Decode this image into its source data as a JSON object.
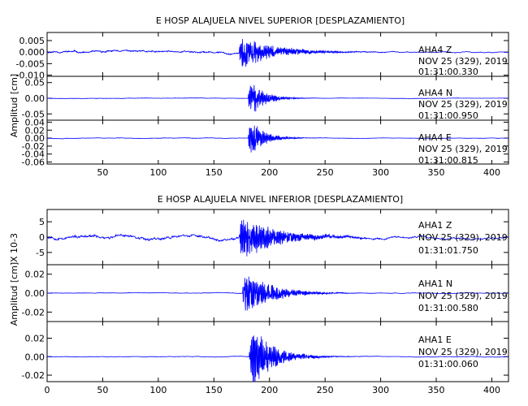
{
  "chart_data": [
    {
      "type": "line",
      "title": "E HOSP ALAJUELA NIVEL SUPERIOR [DESPLAZAMIENTO]",
      "ylabel": "Amplitud [cm]",
      "xlim": [
        0,
        415
      ],
      "x_ticks": [
        "50",
        "100",
        "150",
        "200",
        "250",
        "300",
        "350",
        "400"
      ],
      "x_tick_values": [
        50,
        100,
        150,
        200,
        250,
        300,
        350,
        400
      ],
      "line_color": "#0000ff",
      "panels": [
        {
          "series": "AHA4 Z",
          "station": "AHA4",
          "component": "Z",
          "date": "NOV 25 (329), 2019",
          "time": "01:31:00.330",
          "ylim": [
            -0.0105,
            0.0085
          ],
          "y_ticks": [
            "0.005",
            "0.000",
            "-0.005",
            "-0.010"
          ],
          "y_tick_values": [
            0.005,
            0.0,
            -0.005,
            -0.01
          ],
          "event_start": 173,
          "peak_amplitude": 0.0075,
          "pre_noise": 0.0006,
          "post_noise": 0.0004,
          "offset_pre": 0.0003,
          "decay_seconds": 28,
          "seed": 11
        },
        {
          "series": "AHA4 N",
          "station": "AHA4",
          "component": "N",
          "date": "NOV 25 (329), 2019",
          "time": "01:31:00.950",
          "ylim": [
            -0.07,
            0.07
          ],
          "y_ticks": [
            "0.05",
            "0.00",
            "-0.05"
          ],
          "y_tick_values": [
            0.05,
            0.0,
            -0.05
          ],
          "event_start": 181,
          "peak_amplitude": 0.06,
          "pre_noise": 0.0008,
          "post_noise": 0.0008,
          "offset_pre": 0.0,
          "decay_seconds": 12,
          "seed": 23
        },
        {
          "series": "AHA4 E",
          "station": "AHA4",
          "component": "E",
          "date": "NOV 25 (329), 2019",
          "time": "01:31:00.815",
          "ylim": [
            -0.065,
            0.045
          ],
          "y_ticks": [
            "0.04",
            "0.02",
            "0.00",
            "-0.02",
            "-0.04",
            "-0.06"
          ],
          "y_tick_values": [
            0.04,
            0.02,
            0.0,
            -0.02,
            -0.04,
            -0.06
          ],
          "event_start": 181,
          "peak_amplitude": 0.05,
          "pre_noise": 0.0008,
          "post_noise": 0.0008,
          "offset_pre": 0.0,
          "decay_seconds": 12,
          "seed": 37
        }
      ]
    },
    {
      "type": "line",
      "title": "E HOSP ALAJUELA NIVEL INFERIOR [DESPLAZAMIENTO]",
      "ylabel": "Amplitud [cm]",
      "z_scale_label": "X 10-3",
      "xlim": [
        0,
        415
      ],
      "x_ticks": [
        "0",
        "50",
        "100",
        "150",
        "200",
        "250",
        "300",
        "350",
        "400"
      ],
      "x_tick_values": [
        0,
        50,
        100,
        150,
        200,
        250,
        300,
        350,
        400
      ],
      "line_color": "#0000ff",
      "panels": [
        {
          "series": "AHA1 Z",
          "station": "AHA1",
          "component": "Z",
          "date": "NOV 25 (329), 2019",
          "time": "01:31:01.750",
          "ylim": [
            -9,
            9
          ],
          "y_ticks": [
            "5",
            "0",
            "-5"
          ],
          "y_tick_values": [
            5,
            0,
            -5
          ],
          "event_start": 173,
          "peak_amplitude": 8,
          "pre_noise": 0.7,
          "post_noise": 0.8,
          "offset_pre": 0.3,
          "decay_seconds": 30,
          "seed": 53
        },
        {
          "series": "AHA1 N",
          "station": "AHA1",
          "component": "N",
          "date": "NOV 25 (329), 2019",
          "time": "01:31:00.580",
          "ylim": [
            -0.03,
            0.03
          ],
          "y_ticks": [
            "0.02",
            "0.00",
            "-0.02"
          ],
          "y_tick_values": [
            0.02,
            0.0,
            -0.02
          ],
          "event_start": 176,
          "peak_amplitude": 0.026,
          "pre_noise": 0.0004,
          "post_noise": 0.0006,
          "offset_pre": 0.0,
          "decay_seconds": 22,
          "seed": 71
        },
        {
          "series": "AHA1 E",
          "station": "AHA1",
          "component": "E",
          "date": "NOV 25 (329), 2019",
          "time": "01:31:00.060",
          "ylim": [
            -0.027,
            0.038
          ],
          "y_ticks": [
            "0.02",
            "0.00",
            "-0.02"
          ],
          "y_tick_values": [
            0.02,
            0.0,
            -0.02
          ],
          "event_start": 182,
          "peak_amplitude": 0.036,
          "pre_noise": 0.0004,
          "post_noise": 0.0006,
          "offset_pre": 0.0,
          "decay_seconds": 18,
          "seed": 89
        }
      ]
    }
  ]
}
